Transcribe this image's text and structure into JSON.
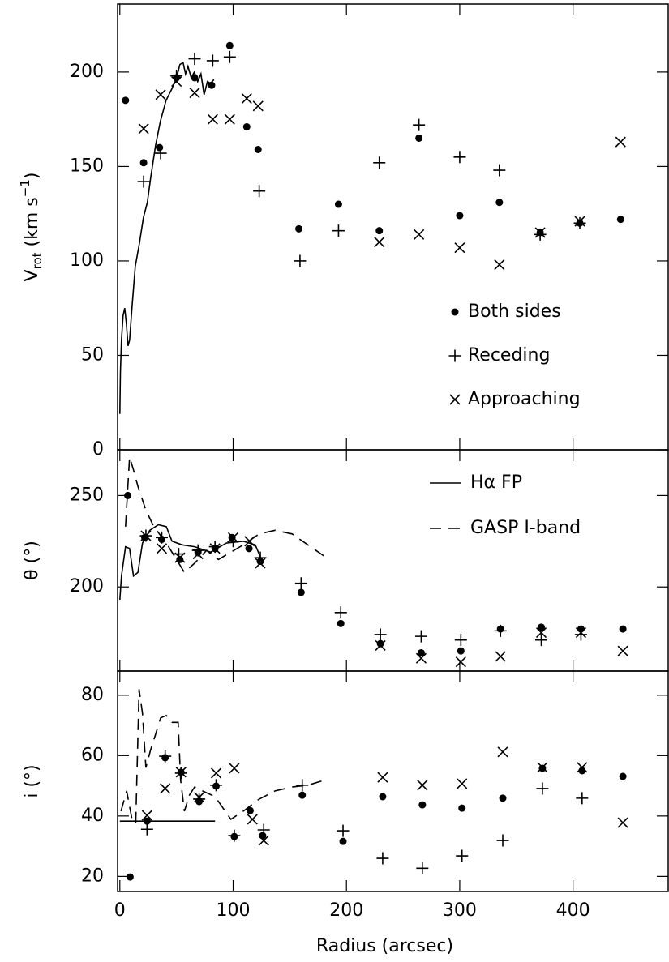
{
  "chart_data": [
    {
      "type": "scatter",
      "xlim": [
        -2,
        484
      ],
      "ylim": [
        0,
        236
      ],
      "yticks": [
        0,
        50,
        100,
        150,
        200
      ],
      "color": "#000",
      "ylabel": {
        "base": "V",
        "sub": "rot",
        "unit": " (km s",
        "sup": "−1",
        "end": ")"
      },
      "series": [
        {
          "name": "Both sides",
          "marker": "dot",
          "x": [
            5,
            21,
            35,
            50,
            66,
            81,
            97,
            112,
            122,
            158,
            193,
            229,
            264,
            300,
            335,
            371,
            406,
            442
          ],
          "values": [
            185,
            152,
            160,
            197,
            197,
            193,
            214,
            171,
            159,
            117,
            130,
            116,
            165,
            124,
            131,
            115,
            120,
            122
          ]
        },
        {
          "name": "Receding",
          "marker": "plus",
          "x": [
            21,
            36,
            50,
            66,
            82,
            97,
            123,
            159,
            193,
            229,
            264,
            300,
            335,
            371,
            406
          ],
          "values": [
            142,
            157,
            198,
            207,
            206,
            208,
            137,
            100,
            116,
            152,
            172,
            155,
            148,
            114,
            120
          ]
        },
        {
          "name": "Approaching",
          "marker": "cross",
          "x": [
            21,
            36,
            50,
            66,
            82,
            97,
            112,
            122,
            229,
            264,
            300,
            335,
            371,
            406,
            442
          ],
          "values": [
            170,
            188,
            195,
            189,
            175,
            175,
            186,
            182,
            110,
            114,
            107,
            98,
            115,
            121,
            163
          ]
        },
        {
          "marker": "solid",
          "x": [
            0,
            0.5,
            1.4,
            2.9,
            4.3,
            5.7,
            7.2,
            8.6,
            10.7,
            13.6,
            17.2,
            20.8,
            24.3,
            27.2,
            31.5,
            35.8,
            40.8,
            45.8,
            50.1,
            53,
            55.8,
            58,
            60.1,
            63,
            65.8,
            68.7,
            71.6,
            74.4,
            77.3,
            80.1,
            83
          ],
          "values": [
            19,
            41,
            58,
            71,
            75,
            67,
            55,
            58,
            75,
            97,
            109,
            123,
            131,
            144,
            161,
            174,
            185,
            191,
            197,
            204,
            205,
            199,
            203,
            197,
            200,
            195,
            199,
            188,
            195,
            194,
            196
          ]
        }
      ]
    },
    {
      "type": "scatter",
      "xlim": [
        -2,
        484
      ],
      "ylim": [
        154,
        275
      ],
      "yticks": [
        200,
        250
      ],
      "color": "#000",
      "ylabel": "θ (°)",
      "series": [
        {
          "marker": "dot",
          "x": [
            7,
            22,
            37,
            53,
            69,
            84,
            99,
            114,
            124,
            160,
            195,
            230,
            266,
            301,
            336,
            372,
            407,
            444
          ],
          "values": [
            250,
            227,
            226,
            215,
            219,
            221,
            227,
            221,
            214,
            197,
            180,
            169,
            164,
            165,
            177,
            178,
            177,
            177
          ]
        },
        {
          "marker": "plus",
          "x": [
            23,
            37,
            52,
            69,
            84,
            100,
            124,
            160,
            195,
            230,
            266,
            301,
            336,
            372,
            407
          ],
          "values": [
            228,
            227,
            218,
            220,
            222,
            225,
            216,
            202,
            186,
            174,
            173,
            171,
            176,
            171,
            174
          ]
        },
        {
          "marker": "cross",
          "x": [
            23,
            37,
            53,
            69,
            84,
            100,
            114.5,
            124,
            230,
            266,
            301,
            336,
            372,
            407,
            444
          ],
          "values": [
            228,
            221,
            216,
            218,
            221,
            227,
            225,
            213,
            168,
            161,
            159,
            162,
            175,
            175,
            165
          ]
        },
        {
          "name": "Hα FP",
          "marker": "solid",
          "x": [
            0,
            1.4,
            5,
            8.6,
            12,
            16,
            20,
            26.5,
            34,
            41,
            46,
            55,
            66,
            80,
            94,
            109,
            119.5,
            125
          ],
          "values": [
            193,
            206,
            222,
            221,
            206,
            208,
            224,
            231,
            234,
            233,
            225,
            223,
            222,
            219,
            224,
            225,
            223,
            215
          ]
        },
        {
          "name": "GASP I-band",
          "marker": "dashed",
          "x": [
            5,
            8.6,
            12,
            16,
            23,
            30,
            41,
            50,
            57,
            66,
            76.6,
            87,
            98,
            109,
            123,
            137,
            152,
            166,
            180
          ],
          "values": [
            233,
            271,
            264,
            255,
            242,
            233,
            224,
            215,
            208,
            213,
            220,
            215,
            219,
            223,
            229,
            231,
            229,
            223,
            217
          ]
        }
      ]
    },
    {
      "type": "scatter",
      "xlim": [
        -2,
        484
      ],
      "ylim": [
        15,
        88
      ],
      "yticks": [
        20,
        40,
        60,
        80
      ],
      "xticks": [
        0,
        100,
        200,
        300,
        400
      ],
      "color": "#000",
      "ylabel": "i (°)",
      "xlabel": "Radius (arcsec)",
      "series": [
        {
          "marker": "dot",
          "x": [
            9,
            24,
            40,
            54,
            70,
            85,
            101,
            115,
            126,
            161,
            197,
            232,
            267,
            302,
            338,
            373,
            408,
            444
          ],
          "values": [
            19.8,
            38.3,
            59.3,
            54.5,
            44.8,
            49.9,
            33.2,
            41.8,
            33.5,
            46.9,
            31.6,
            46.4,
            43.7,
            42.6,
            45.9,
            55.8,
            55,
            53.1
          ]
        },
        {
          "marker": "plus",
          "x": [
            24,
            40,
            54,
            70,
            85,
            101,
            127,
            161,
            197,
            232,
            267,
            302,
            338,
            373,
            408
          ],
          "values": [
            35.6,
            59.8,
            54.2,
            45.6,
            50.2,
            33.5,
            35.4,
            50.2,
            35.1,
            26,
            22.7,
            26.8,
            31.9,
            49.1,
            45.9
          ]
        },
        {
          "marker": "cross",
          "x": [
            24,
            40,
            54,
            70,
            85,
            101,
            117,
            127,
            232,
            267,
            302,
            338,
            373,
            408,
            444
          ],
          "values": [
            40.2,
            49.1,
            54.5,
            46.2,
            54.2,
            55.8,
            38.9,
            31.9,
            52.8,
            50.2,
            50.7,
            61.2,
            56.1,
            56.1,
            37.8
          ]
        },
        {
          "marker": "solid",
          "x": [
            0,
            84
          ],
          "values": [
            38.3,
            38.3
          ]
        },
        {
          "marker": "dashed",
          "x": [
            1,
            6,
            10.7,
            14,
            17,
            20,
            23,
            27,
            31.5,
            36,
            41,
            46,
            51.5,
            53.6,
            57,
            61.5,
            66,
            73,
            84,
            98,
            109,
            123,
            137,
            152,
            166,
            180
          ],
          "values": [
            41.6,
            48.3,
            39,
            37.5,
            82,
            74,
            56,
            61.7,
            67,
            72.5,
            73.3,
            71,
            71,
            52,
            41.6,
            47,
            49.6,
            48.3,
            46.4,
            38.9,
            41.6,
            45.6,
            48.3,
            49.6,
            50.2,
            51.8
          ]
        }
      ]
    }
  ]
}
